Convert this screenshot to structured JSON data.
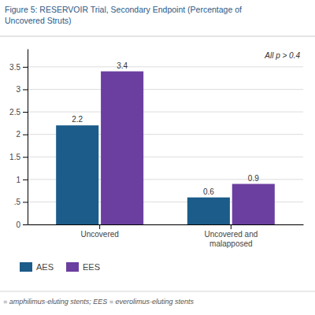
{
  "chart_data": {
    "type": "bar",
    "title": "Figure 5: RESERVOIR Trial, Secondary Endpoint (Percentage of\nUncovered Struts)",
    "categories": [
      "Uncovered",
      "Uncovered and\nmalapposed"
    ],
    "series": [
      {
        "name": "AES",
        "color": "#1b5c8a",
        "values": [
          2.2,
          0.6
        ]
      },
      {
        "name": "EES",
        "color": "#6b3fa0",
        "values": [
          3.4,
          0.9
        ]
      }
    ],
    "ylim": [
      0,
      3.9
    ],
    "yticks": [
      0,
      {
        "value": 0.5,
        "label": ".5"
      },
      1,
      1.5,
      2,
      2.5,
      3,
      3.5
    ],
    "grid": true,
    "data_labels": true,
    "legend": "bottom",
    "annotations": [
      "All p > 0.4",
      "= amphilimus-eluting stents; EES = everolimus-eluting stents"
    ]
  }
}
